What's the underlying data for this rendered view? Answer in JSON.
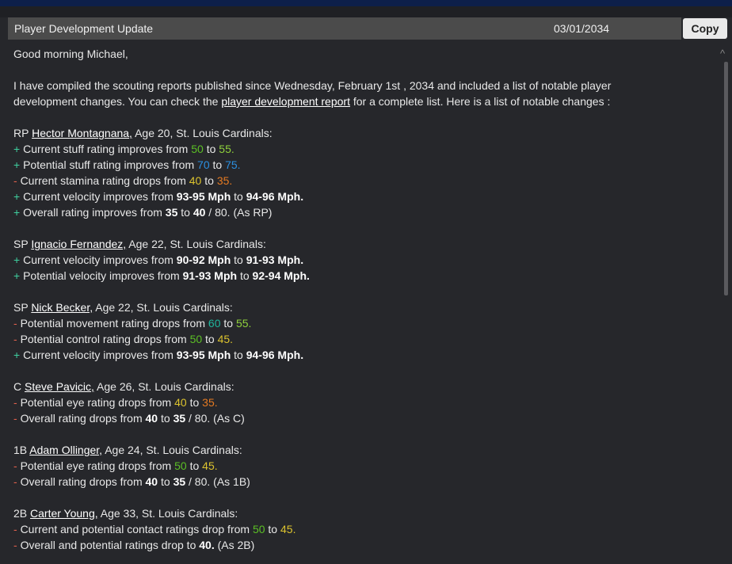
{
  "colors": {
    "green": "#5bbf25",
    "lightgreen": "#8fd13c",
    "blue": "#2b8fe0",
    "yellow": "#dcc32e",
    "orange": "#e57a22",
    "teal": "#1fb59c"
  },
  "header": {
    "title": "Player Development Update",
    "date": "03/01/2034",
    "copy_label": "Copy"
  },
  "scrollbar": {
    "up_icon": "^"
  },
  "lines": [
    [
      {
        "t": "Good morning Michael,"
      }
    ],
    [],
    [
      {
        "t": "I have compiled the scouting reports published since Wednesday, February 1st , 2034 and included a list of notable player"
      }
    ],
    [
      {
        "t": "development changes. You can check the "
      },
      {
        "t": "player development report",
        "s": "link"
      },
      {
        "t": " for a complete list. Here is a list of notable changes :"
      }
    ],
    [],
    [
      {
        "t": "RP "
      },
      {
        "t": "Hector Montagnana,",
        "s": "link"
      },
      {
        "t": " Age 20, St. Louis Cardinals:"
      }
    ],
    [
      {
        "t": "+ ",
        "s": "plus"
      },
      {
        "t": "Current stuff rating improves from "
      },
      {
        "t": "50",
        "c": "green"
      },
      {
        "t": " to "
      },
      {
        "t": "55.",
        "c": "lightgreen"
      }
    ],
    [
      {
        "t": "+ ",
        "s": "plus"
      },
      {
        "t": "Potential stuff rating improves from "
      },
      {
        "t": "70",
        "c": "blue"
      },
      {
        "t": " to "
      },
      {
        "t": "75.",
        "c": "blue"
      }
    ],
    [
      {
        "t": "- ",
        "s": "minus"
      },
      {
        "t": "Current stamina rating drops from "
      },
      {
        "t": "40",
        "c": "yellow"
      },
      {
        "t": " to "
      },
      {
        "t": "35.",
        "c": "orange"
      }
    ],
    [
      {
        "t": "+ ",
        "s": "plus"
      },
      {
        "t": "Current velocity improves from "
      },
      {
        "t": "93-95 Mph",
        "s": "b"
      },
      {
        "t": " to "
      },
      {
        "t": "94-96 Mph.",
        "s": "b"
      }
    ],
    [
      {
        "t": "+ ",
        "s": "plus"
      },
      {
        "t": "Overall rating improves from "
      },
      {
        "t": "35",
        "s": "b"
      },
      {
        "t": " to "
      },
      {
        "t": "40",
        "s": "b"
      },
      {
        "t": " / 80. (As RP)"
      }
    ],
    [],
    [
      {
        "t": "SP "
      },
      {
        "t": "Ignacio Fernandez,",
        "s": "link"
      },
      {
        "t": " Age 22, St. Louis Cardinals:"
      }
    ],
    [
      {
        "t": "+ ",
        "s": "plus"
      },
      {
        "t": "Current velocity improves from "
      },
      {
        "t": "90-92 Mph",
        "s": "b"
      },
      {
        "t": " to "
      },
      {
        "t": "91-93 Mph.",
        "s": "b"
      }
    ],
    [
      {
        "t": "+ ",
        "s": "plus"
      },
      {
        "t": "Potential velocity improves from "
      },
      {
        "t": "91-93 Mph",
        "s": "b"
      },
      {
        "t": " to "
      },
      {
        "t": "92-94 Mph.",
        "s": "b"
      }
    ],
    [],
    [
      {
        "t": "SP "
      },
      {
        "t": "Nick Becker,",
        "s": "link"
      },
      {
        "t": " Age 22, St. Louis Cardinals:"
      }
    ],
    [
      {
        "t": "- ",
        "s": "minus"
      },
      {
        "t": "Potential movement rating drops from "
      },
      {
        "t": "60",
        "c": "teal"
      },
      {
        "t": " to "
      },
      {
        "t": "55.",
        "c": "lightgreen"
      }
    ],
    [
      {
        "t": "- ",
        "s": "minus"
      },
      {
        "t": "Potential control rating drops from "
      },
      {
        "t": "50",
        "c": "green"
      },
      {
        "t": " to "
      },
      {
        "t": "45.",
        "c": "yellow"
      }
    ],
    [
      {
        "t": "+ ",
        "s": "plus"
      },
      {
        "t": "Current velocity improves from "
      },
      {
        "t": "93-95 Mph",
        "s": "b"
      },
      {
        "t": " to "
      },
      {
        "t": "94-96 Mph.",
        "s": "b"
      }
    ],
    [],
    [
      {
        "t": "C "
      },
      {
        "t": "Steve Pavicic,",
        "s": "link"
      },
      {
        "t": " Age 26, St. Louis Cardinals:"
      }
    ],
    [
      {
        "t": "- ",
        "s": "minus"
      },
      {
        "t": "Potential eye rating drops from "
      },
      {
        "t": "40",
        "c": "yellow"
      },
      {
        "t": " to "
      },
      {
        "t": "35.",
        "c": "orange"
      }
    ],
    [
      {
        "t": "- ",
        "s": "minus"
      },
      {
        "t": "Overall rating drops from "
      },
      {
        "t": "40",
        "s": "b"
      },
      {
        "t": " to "
      },
      {
        "t": "35",
        "s": "b"
      },
      {
        "t": " / 80. (As C)"
      }
    ],
    [],
    [
      {
        "t": "1B "
      },
      {
        "t": "Adam Ollinger,",
        "s": "link"
      },
      {
        "t": " Age 24, St. Louis Cardinals:"
      }
    ],
    [
      {
        "t": "- ",
        "s": "minus"
      },
      {
        "t": "Potential eye rating drops from "
      },
      {
        "t": "50",
        "c": "green"
      },
      {
        "t": " to "
      },
      {
        "t": "45.",
        "c": "yellow"
      }
    ],
    [
      {
        "t": "- ",
        "s": "minus"
      },
      {
        "t": "Overall rating drops from "
      },
      {
        "t": "40",
        "s": "b"
      },
      {
        "t": " to "
      },
      {
        "t": "35",
        "s": "b"
      },
      {
        "t": " / 80. (As 1B)"
      }
    ],
    [],
    [
      {
        "t": "2B "
      },
      {
        "t": "Carter Young,",
        "s": "link"
      },
      {
        "t": " Age 33, St. Louis Cardinals:"
      }
    ],
    [
      {
        "t": "- ",
        "s": "minus"
      },
      {
        "t": "Current and potential contact ratings drop from "
      },
      {
        "t": "50",
        "c": "green"
      },
      {
        "t": " to "
      },
      {
        "t": "45.",
        "c": "yellow"
      }
    ],
    [
      {
        "t": "- ",
        "s": "minus"
      },
      {
        "t": "Overall and potential ratings drop to "
      },
      {
        "t": "40.",
        "s": "b"
      },
      {
        "t": " (As 2B)"
      }
    ]
  ]
}
